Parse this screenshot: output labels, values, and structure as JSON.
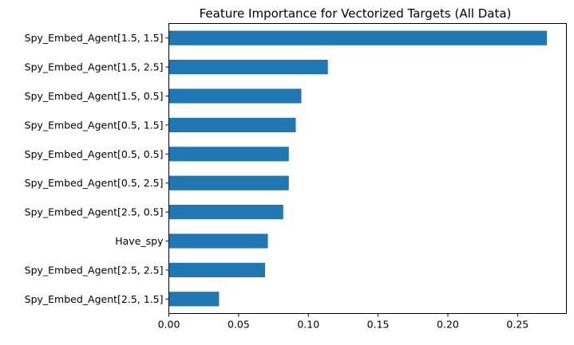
{
  "chart_data": {
    "type": "bar",
    "orientation": "horizontal",
    "title": "Feature Importance for Vectorized Targets (All Data)",
    "xlabel": "",
    "ylabel": "",
    "xlim": [
      0,
      0.285
    ],
    "xticks": [
      0.0,
      0.05,
      0.1,
      0.15,
      0.2,
      0.25
    ],
    "xtick_labels": [
      "0.00",
      "0.05",
      "0.10",
      "0.15",
      "0.20",
      "0.25"
    ],
    "grid": false,
    "legend": "none",
    "bar_color": "#1f77b4",
    "categories": [
      "Spy_Embed_Agent[1.5, 1.5]",
      "Spy_Embed_Agent[1.5, 2.5]",
      "Spy_Embed_Agent[1.5, 0.5]",
      "Spy_Embed_Agent[0.5, 1.5]",
      "Spy_Embed_Agent[0.5, 0.5]",
      "Spy_Embed_Agent[0.5, 2.5]",
      "Spy_Embed_Agent[2.5, 0.5]",
      "Have_spy",
      "Spy_Embed_Agent[2.5, 2.5]",
      "Spy_Embed_Agent[2.5, 1.5]"
    ],
    "values": [
      0.271,
      0.114,
      0.095,
      0.091,
      0.086,
      0.086,
      0.082,
      0.071,
      0.069,
      0.036
    ]
  }
}
